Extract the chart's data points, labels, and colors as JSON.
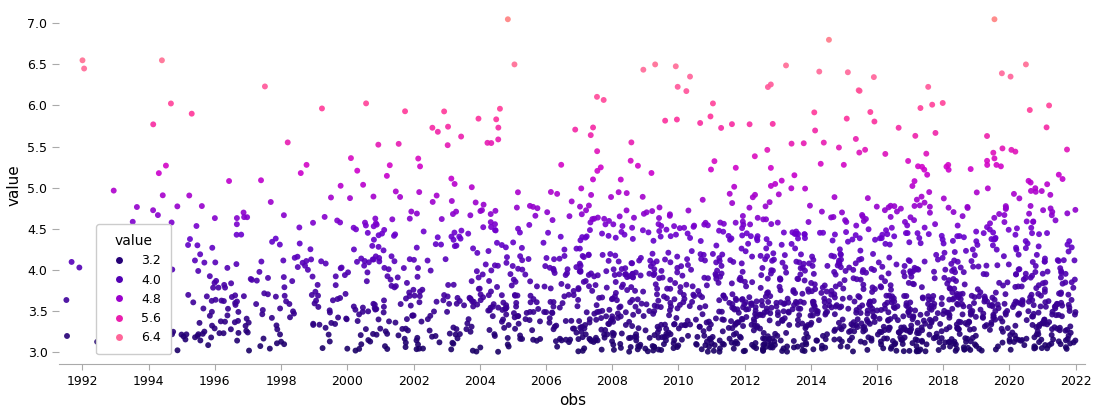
{
  "xlabel": "obs",
  "ylabel": "value",
  "ylim": [
    2.85,
    7.2
  ],
  "yticks": [
    3.0,
    3.5,
    4.0,
    4.5,
    5.0,
    5.5,
    6.0,
    6.5,
    7.0
  ],
  "xlim": [
    1991.3,
    2022.3
  ],
  "xticks": [
    1992,
    1994,
    1996,
    1998,
    2000,
    2002,
    2004,
    2006,
    2008,
    2010,
    2012,
    2014,
    2016,
    2018,
    2020,
    2022
  ],
  "vmin": 3.0,
  "vmax": 7.0,
  "legend_values": [
    3.2,
    4.0,
    4.8,
    5.6,
    6.4
  ],
  "legend_title": "value",
  "marker_size": 18,
  "background_color": "#ffffff"
}
